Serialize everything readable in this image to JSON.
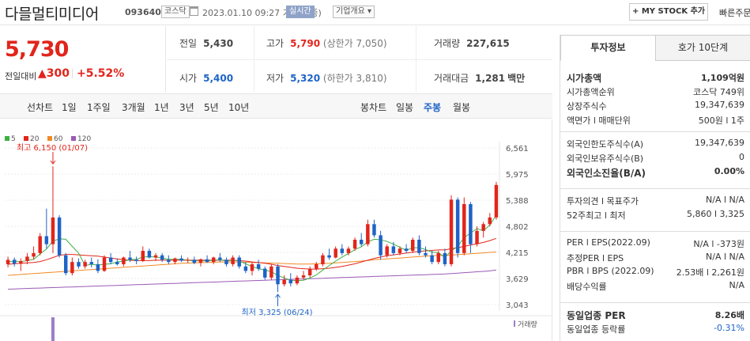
{
  "header": {
    "name": "다믈멀티미디어",
    "code": "093640",
    "market": "코스닥",
    "datetime": "2023.01.10 09:27",
    "basis": "기준(장중)",
    "live": "실시간",
    "corp_info": "기업개요",
    "my_stock": "MY STOCK 추가",
    "fast": "빠른주문"
  },
  "price": {
    "current": "5,730",
    "change_label": "전일대비",
    "change_amount": "300",
    "change_pct": "+5.52%"
  },
  "stats": {
    "prev_close": {
      "label": "전일",
      "value": "5,430"
    },
    "high": {
      "label": "고가",
      "value": "5,790",
      "note": "(상한가 7,050)"
    },
    "volume": {
      "label": "거래량",
      "value": "227,615"
    },
    "open": {
      "label": "시가",
      "value": "5,400"
    },
    "low": {
      "label": "저가",
      "value": "5,320",
      "note": "(하한가 3,810)"
    },
    "amount": {
      "label": "거래대금",
      "value": "1,281",
      "unit": "백만"
    }
  },
  "periods": {
    "line_label": "선차트",
    "line_items": [
      "1일",
      "1주일",
      "3개월",
      "1년",
      "3년",
      "5년",
      "10년"
    ],
    "candle_label": "봉차트",
    "candle_items": [
      "일봉",
      "주봉",
      "월봉"
    ],
    "selected": "주봉"
  },
  "chart_data": {
    "type": "candlestick",
    "ma_legend": [
      {
        "name": "5",
        "color": "#3cb043"
      },
      {
        "name": "20",
        "color": "#e1251b"
      },
      {
        "name": "60",
        "color": "#f08a24"
      },
      {
        "name": "120",
        "color": "#9b59b6"
      }
    ],
    "y_ticks": [
      "6,561",
      "5,975",
      "5,388",
      "4,802",
      "4,215",
      "3,629",
      "3,043"
    ],
    "ylim": [
      3043,
      6561
    ],
    "max_annotation": "최고 6,150 (01/07)",
    "min_annotation": "최저 3,325 (06/24)",
    "volume_label": "거래량",
    "colors": {
      "up": "#e1251b",
      "down": "#1e63c7"
    },
    "candles": [
      [
        3950,
        4120,
        3880,
        4050
      ],
      [
        4050,
        4100,
        3900,
        3960
      ],
      [
        3960,
        4080,
        3800,
        4020
      ],
      [
        4020,
        4200,
        3950,
        4120
      ],
      [
        4120,
        4350,
        4050,
        4200
      ],
      [
        4200,
        4650,
        4150,
        4580
      ],
      [
        4580,
        5200,
        4300,
        4400
      ],
      [
        4400,
        6150,
        4200,
        5000
      ],
      [
        5000,
        5050,
        4100,
        4150
      ],
      [
        4150,
        4200,
        3700,
        3750
      ],
      [
        3750,
        4100,
        3700,
        4000
      ],
      [
        4000,
        4080,
        3850,
        3900
      ],
      [
        3900,
        4050,
        3850,
        4000
      ],
      [
        4000,
        4100,
        3880,
        3950
      ],
      [
        3950,
        4060,
        3750,
        3800
      ],
      [
        3800,
        4150,
        3780,
        4100
      ],
      [
        4100,
        4200,
        3950,
        4000
      ],
      [
        4000,
        4080,
        3920,
        3950
      ],
      [
        3950,
        4120,
        3900,
        4100
      ],
      [
        4100,
        4250,
        4000,
        4050
      ],
      [
        4050,
        4120,
        3950,
        4020
      ],
      [
        4020,
        4350,
        4000,
        4250
      ],
      [
        4250,
        4300,
        4080,
        4100
      ],
      [
        4100,
        4200,
        4020,
        4150
      ],
      [
        4150,
        4200,
        4000,
        4050
      ],
      [
        4050,
        4150,
        3950,
        4000
      ],
      [
        4000,
        4100,
        3950,
        4080
      ],
      [
        4080,
        4150,
        4000,
        4030
      ],
      [
        4030,
        4100,
        3980,
        4050
      ],
      [
        4050,
        4120,
        3950,
        3980
      ],
      [
        3980,
        4080,
        3900,
        4060
      ],
      [
        4060,
        4150,
        3980,
        4000
      ],
      [
        4000,
        4120,
        3950,
        4100
      ],
      [
        4100,
        4200,
        4000,
        4050
      ],
      [
        4050,
        4100,
        3900,
        3950
      ],
      [
        3950,
        4150,
        3900,
        4100
      ],
      [
        4100,
        4150,
        3850,
        3900
      ],
      [
        3900,
        4000,
        3750,
        3800
      ],
      [
        3800,
        4000,
        3700,
        3950
      ],
      [
        3950,
        4050,
        3800,
        3850
      ],
      [
        3850,
        3900,
        3600,
        3650
      ],
      [
        3650,
        3950,
        3600,
        3900
      ],
      [
        3900,
        3950,
        3325,
        3500
      ],
      [
        3500,
        3700,
        3450,
        3600
      ],
      [
        3600,
        3750,
        3450,
        3520
      ],
      [
        3520,
        3700,
        3480,
        3650
      ],
      [
        3650,
        3800,
        3600,
        3700
      ],
      [
        3700,
        3900,
        3650,
        3850
      ],
      [
        3850,
        4000,
        3800,
        3950
      ],
      [
        3950,
        4200,
        3900,
        4150
      ],
      [
        4150,
        4300,
        4050,
        4100
      ],
      [
        4100,
        4350,
        4080,
        4300
      ],
      [
        4300,
        4400,
        4150,
        4200
      ],
      [
        4200,
        4350,
        4150,
        4300
      ],
      [
        4300,
        4550,
        4250,
        4500
      ],
      [
        4500,
        4650,
        4350,
        4400
      ],
      [
        4400,
        4950,
        4350,
        4850
      ],
      [
        4850,
        4950,
        4550,
        4600
      ],
      [
        4600,
        4700,
        4050,
        4150
      ],
      [
        4150,
        4400,
        4100,
        4350
      ],
      [
        4350,
        4450,
        4150,
        4200
      ],
      [
        4200,
        4350,
        4150,
        4300
      ],
      [
        4300,
        4400,
        4200,
        4250
      ],
      [
        4250,
        4550,
        4200,
        4500
      ],
      [
        4500,
        4600,
        4150,
        4200
      ],
      [
        4200,
        4350,
        4100,
        4150
      ],
      [
        4150,
        4250,
        3950,
        4000
      ],
      [
        4000,
        4250,
        3950,
        4200
      ],
      [
        4200,
        4300,
        3900,
        3950
      ],
      [
        3950,
        5500,
        3900,
        5400
      ],
      [
        5400,
        5450,
        4100,
        4200
      ],
      [
        4200,
        5450,
        4150,
        5300
      ],
      [
        5300,
        5350,
        4200,
        4400
      ],
      [
        4400,
        4800,
        4350,
        4700
      ],
      [
        4700,
        4900,
        4550,
        4850
      ],
      [
        4850,
        5100,
        4800,
        5000
      ],
      [
        5000,
        5800,
        4950,
        5730
      ]
    ],
    "ma5": [
      4000,
      4020,
      4010,
      4030,
      4060,
      4180,
      4290,
      4470,
      4520,
      4510,
      4350,
      4200,
      3920,
      3950,
      3930,
      3950,
      3960,
      4000,
      4020,
      4050,
      4060,
      4110,
      4120,
      4110,
      4090,
      4060,
      4060,
      4060,
      4040,
      4020,
      4030,
      4020,
      4040,
      4050,
      4020,
      4040,
      4020,
      3960,
      3900,
      3850,
      3820,
      3780,
      3700,
      3640,
      3590,
      3580,
      3590,
      3640,
      3710,
      3820,
      3920,
      4020,
      4110,
      4190,
      4280,
      4340,
      4450,
      4510,
      4500,
      4460,
      4400,
      4330,
      4260,
      4320,
      4320,
      4280,
      4220,
      4210,
      4100,
      4250,
      4350,
      4550,
      4650,
      4750,
      4700,
      4830,
      5050
    ],
    "ma20": [
      3950,
      3960,
      3970,
      3980,
      3990,
      4010,
      4050,
      4100,
      4150,
      4170,
      4170,
      4160,
      4150,
      4140,
      4130,
      4110,
      4090,
      4070,
      4050,
      4040,
      4030,
      4030,
      4030,
      4040,
      4040,
      4040,
      4040,
      4040,
      4040,
      4040,
      4040,
      4040,
      4040,
      4040,
      4040,
      4040,
      4030,
      4020,
      4000,
      3990,
      3970,
      3950,
      3920,
      3900,
      3880,
      3860,
      3850,
      3840,
      3840,
      3850,
      3860,
      3880,
      3900,
      3930,
      3960,
      4000,
      4040,
      4080,
      4110,
      4140,
      4160,
      4180,
      4200,
      4220,
      4240,
      4250,
      4260,
      4270,
      4270,
      4300,
      4320,
      4350,
      4380,
      4410,
      4440,
      4480,
      4530
    ],
    "ma60": [
      3700,
      3710,
      3720,
      3730,
      3740,
      3750,
      3760,
      3770,
      3780,
      3790,
      3800,
      3810,
      3820,
      3830,
      3840,
      3850,
      3860,
      3870,
      3880,
      3890,
      3900,
      3910,
      3920,
      3930,
      3940,
      3950,
      3960,
      3970,
      3975,
      3980,
      3985,
      3990,
      3995,
      4000,
      4000,
      4000,
      4000,
      3995,
      3990,
      3985,
      3980,
      3975,
      3970,
      3965,
      3960,
      3955,
      3955,
      3955,
      3960,
      3965,
      3970,
      3980,
      3990,
      4000,
      4010,
      4020,
      4035,
      4050,
      4060,
      4070,
      4080,
      4090,
      4100,
      4110,
      4120,
      4130,
      4140,
      4145,
      4150,
      4155,
      4165,
      4175,
      4185,
      4195,
      4205,
      4215,
      4225
    ],
    "ma120": [
      3390,
      3395,
      3400,
      3405,
      3410,
      3415,
      3420,
      3425,
      3430,
      3435,
      3440,
      3445,
      3450,
      3455,
      3460,
      3465,
      3470,
      3475,
      3480,
      3485,
      3490,
      3495,
      3500,
      3505,
      3510,
      3515,
      3520,
      3525,
      3530,
      3535,
      3540,
      3545,
      3550,
      3555,
      3560,
      3565,
      3570,
      3575,
      3580,
      3585,
      3590,
      3595,
      3600,
      3605,
      3610,
      3615,
      3620,
      3625,
      3630,
      3635,
      3640,
      3645,
      3650,
      3655,
      3660,
      3665,
      3670,
      3675,
      3680,
      3685,
      3690,
      3695,
      3700,
      3705,
      3710,
      3715,
      3720,
      3725,
      3730,
      3740,
      3750,
      3760,
      3770,
      3780,
      3790,
      3800,
      3820
    ]
  },
  "panel": {
    "tabs": [
      "투자정보",
      "호가 10단계"
    ],
    "active_tab": "투자정보",
    "rows1": [
      {
        "label": "시가총액",
        "value": "1,109억원",
        "big": true
      },
      {
        "label": "시가총액순위",
        "value": "코스닥 749위"
      },
      {
        "label": "상장주식수",
        "value": "19,347,639"
      },
      {
        "label": "액면가 l 매매단위",
        "value": "500원  l  1주"
      }
    ],
    "rows2": [
      {
        "label": "외국인한도주식수(A)",
        "value": "19,347,639"
      },
      {
        "label": "외국인보유주식수(B)",
        "value": "0"
      },
      {
        "label": "외국인소진율(B/A)",
        "value": "0.00%",
        "big": true
      }
    ],
    "rows3": [
      {
        "label": "투자의견 l 목표주가",
        "value": "N/A  l  N/A"
      },
      {
        "label": "52주최고 l 최저",
        "value": "5,860  l  3,325"
      }
    ],
    "rows4": [
      {
        "label": "PER l EPS(2022.09)",
        "value": "N/A  l  -373원"
      },
      {
        "label": "추정PER l EPS",
        "value": "N/A  l  N/A"
      },
      {
        "label": "PBR l BPS (2022.09)",
        "value": "2.53배  l  2,261원"
      },
      {
        "label": "배당수익률",
        "value": "N/A"
      }
    ],
    "rows5": [
      {
        "label": "동일업종 PER",
        "value": "8.26배",
        "big": true
      },
      {
        "label": "동일업종 등락률",
        "value": "-0.31%",
        "blue": true
      }
    ]
  }
}
